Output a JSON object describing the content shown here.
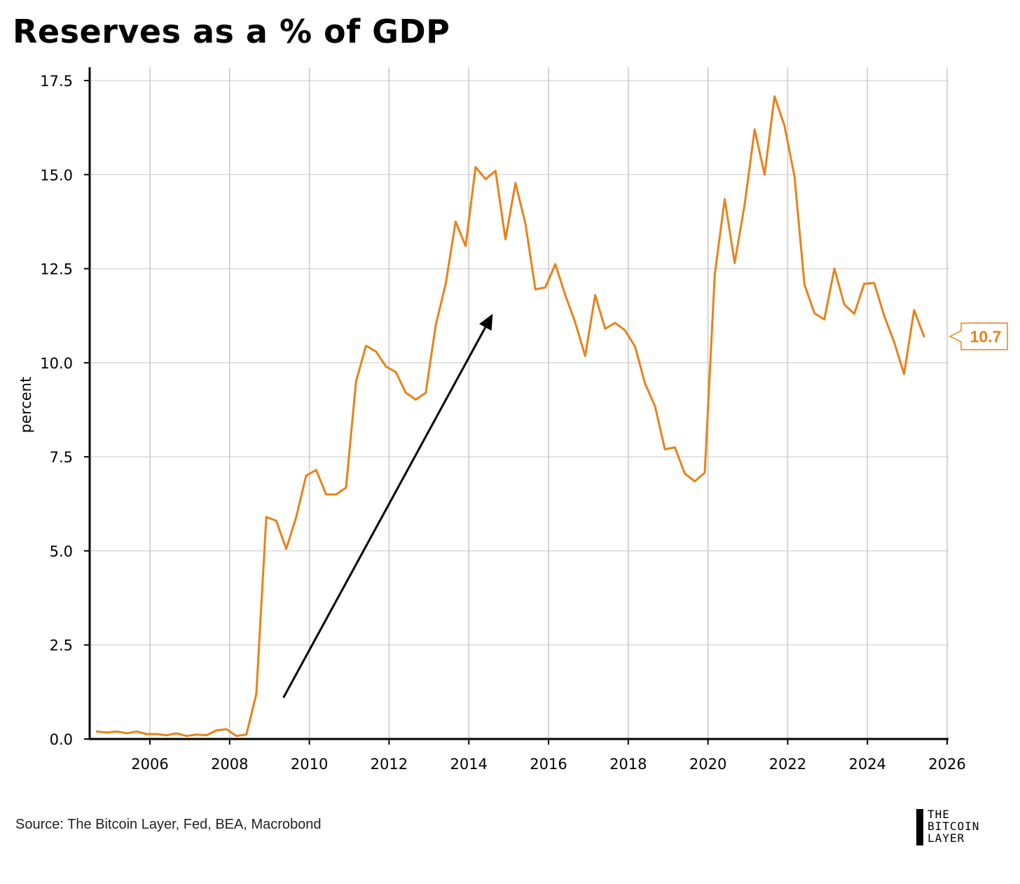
{
  "title": "Reserves as a % of GDP",
  "source": "Source: The Bitcoin Layer, Fed, BEA, Macrobond",
  "logo": {
    "line1": "THE",
    "line2": "BITCOIN",
    "line3": "LAYER"
  },
  "colors": {
    "line": "#E8821A",
    "arrow": "#000000",
    "grid": "#c8c8c8",
    "axis": "#000000"
  },
  "chart_data": {
    "type": "line",
    "title": "Reserves as a % of GDP",
    "xlabel": "",
    "ylabel": "percent",
    "xlim": [
      2004.5,
      2026
    ],
    "ylim": [
      0,
      17.5
    ],
    "xticks": [
      "2006",
      "2008",
      "2010",
      "2012",
      "2014",
      "2016",
      "2018",
      "2020",
      "2022",
      "2024",
      "2026"
    ],
    "yticks": [
      "0.0",
      "2.5",
      "5.0",
      "7.5",
      "10.0",
      "12.5",
      "15.0",
      "17.5"
    ],
    "grid": true,
    "last_value_label": "10.7",
    "annotation": {
      "type": "arrow",
      "from": [
        2009.35,
        1.1
      ],
      "to": [
        2014.6,
        11.3
      ]
    },
    "series": [
      {
        "name": "",
        "x": [
          2004.67,
          2004.92,
          2005.17,
          2005.42,
          2005.67,
          2005.92,
          2006.17,
          2006.42,
          2006.67,
          2006.92,
          2007.17,
          2007.42,
          2007.67,
          2007.92,
          2008.17,
          2008.42,
          2008.67,
          2008.92,
          2009.17,
          2009.42,
          2009.67,
          2009.92,
          2010.17,
          2010.42,
          2010.67,
          2010.92,
          2011.17,
          2011.42,
          2011.67,
          2011.92,
          2012.17,
          2012.42,
          2012.67,
          2012.92,
          2013.17,
          2013.42,
          2013.67,
          2013.92,
          2014.17,
          2014.42,
          2014.67,
          2014.92,
          2015.17,
          2015.42,
          2015.67,
          2015.92,
          2016.17,
          2016.42,
          2016.67,
          2016.92,
          2017.17,
          2017.42,
          2017.67,
          2017.92,
          2018.17,
          2018.42,
          2018.67,
          2018.92,
          2019.17,
          2019.42,
          2019.67,
          2019.92,
          2020.17,
          2020.42,
          2020.67,
          2020.92,
          2021.17,
          2021.42,
          2021.67,
          2021.92,
          2022.17,
          2022.42,
          2022.67,
          2022.92,
          2023.17,
          2023.42,
          2023.67,
          2023.92,
          2024.17,
          2024.42,
          2024.67,
          2024.92,
          2025.17,
          2025.42
        ],
        "values": [
          0.2,
          0.17,
          0.2,
          0.15,
          0.2,
          0.13,
          0.13,
          0.1,
          0.15,
          0.08,
          0.12,
          0.1,
          0.23,
          0.26,
          0.08,
          0.12,
          1.2,
          5.9,
          5.8,
          5.05,
          5.9,
          7.0,
          7.15,
          6.5,
          6.5,
          6.68,
          9.5,
          10.45,
          10.3,
          9.9,
          9.75,
          9.2,
          9.02,
          9.2,
          11.0,
          12.1,
          13.75,
          13.1,
          15.2,
          14.88,
          15.1,
          13.28,
          14.78,
          13.7,
          11.95,
          12.0,
          12.62,
          11.8,
          11.07,
          10.18,
          11.8,
          10.9,
          11.06,
          10.86,
          10.43,
          9.45,
          8.85,
          7.7,
          7.75,
          7.05,
          6.85,
          7.08,
          12.35,
          14.35,
          12.65,
          14.2,
          16.2,
          15.0,
          17.08,
          16.3,
          14.95,
          12.08,
          11.32,
          11.15,
          12.5,
          11.55,
          11.3,
          12.1,
          12.12,
          11.25,
          10.55,
          9.7,
          11.4,
          10.7
        ]
      }
    ]
  }
}
